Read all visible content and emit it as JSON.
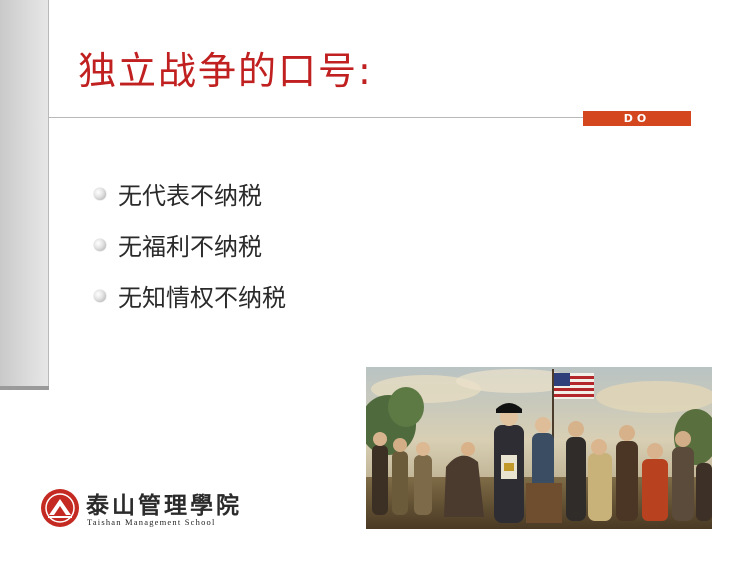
{
  "slide": {
    "title": "独立战争的口号:",
    "tag": "DO",
    "bullets": [
      "无代表不纳税",
      "无福利不纳税",
      "无知情权不纳税"
    ]
  },
  "logo": {
    "name_cn": "泰山管理學院",
    "name_en": "Taishan Management School"
  },
  "colors": {
    "title": "#c0201f",
    "accent": "#d3461e",
    "sidebar": "#d4d4d4"
  }
}
